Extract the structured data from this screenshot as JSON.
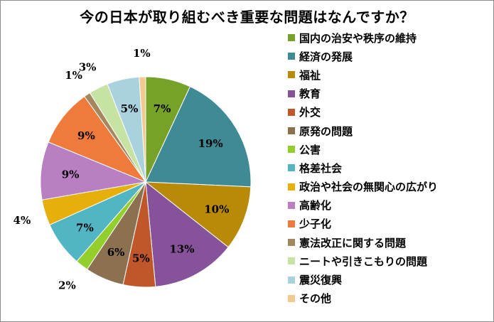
{
  "chart_data": {
    "type": "pie",
    "title": "今の日本が取り組むべき重要な問題はなんですか？",
    "start_angle_deg": 0,
    "direction": "clockwise",
    "slices": [
      {
        "label": "国内の治安や秩序の維持",
        "value": 7,
        "display": "7%",
        "color": "#77a22a"
      },
      {
        "label": "経済の発展",
        "value": 19,
        "display": "19%",
        "color": "#3e8a95"
      },
      {
        "label": "福祉",
        "value": 10,
        "display": "10%",
        "color": "#b88a08"
      },
      {
        "label": "教育",
        "value": 13,
        "display": "13%",
        "color": "#86529a"
      },
      {
        "label": "外交",
        "value": 5,
        "display": "5%",
        "color": "#c0572a"
      },
      {
        "label": "原発の問題",
        "value": 6,
        "display": "6%",
        "color": "#8b7150"
      },
      {
        "label": "公害",
        "value": 2,
        "display": "2%",
        "color": "#92cf2b"
      },
      {
        "label": "格差社会",
        "value": 7,
        "display": "7%",
        "color": "#52b5c4"
      },
      {
        "label": "政治や社会の無関心の広がり",
        "value": 4,
        "display": "4%",
        "color": "#e6af0c"
      },
      {
        "label": "高齢化",
        "value": 9,
        "display": "9%",
        "color": "#b97fc2"
      },
      {
        "label": "少子化",
        "value": 9,
        "display": "9%",
        "color": "#ee7b3c"
      },
      {
        "label": "憲法改正に関する問題",
        "value": 1,
        "display": "1%",
        "color": "#a4875f"
      },
      {
        "label": "ニートや引きこもりの問題",
        "value": 3,
        "display": "3%",
        "color": "#c6e3a4"
      },
      {
        "label": "震災復興",
        "value": 5,
        "display": "5%",
        "color": "#a9d2de"
      },
      {
        "label": "その他",
        "value": 1,
        "display": "1%",
        "color": "#f2c98e"
      }
    ],
    "legend_position": "right"
  }
}
